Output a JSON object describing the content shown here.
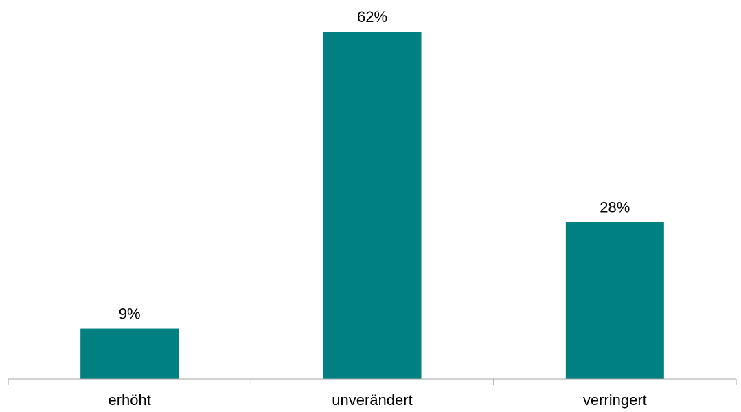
{
  "chart_data": {
    "type": "bar",
    "categories": [
      "erhöht",
      "unverändert",
      "verringert"
    ],
    "values": [
      9,
      62,
      28
    ],
    "value_labels": [
      "9%",
      "62%",
      "28%"
    ],
    "title": "",
    "xlabel": "",
    "ylabel": "",
    "ylim": [
      0,
      62
    ],
    "grid": false,
    "legend": "none",
    "colors": {
      "bar": "#008080",
      "axis": "#a6a6a6",
      "text": "#000000"
    }
  }
}
